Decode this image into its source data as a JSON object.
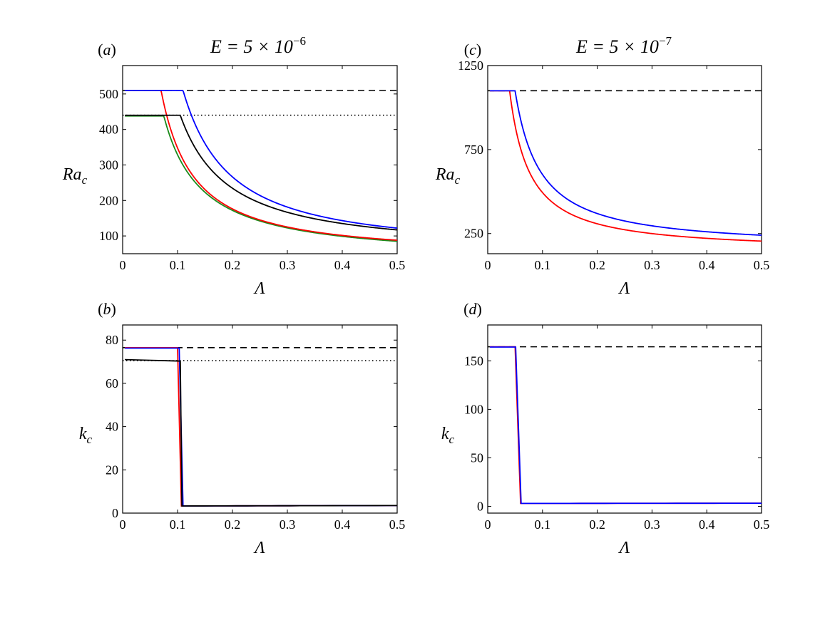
{
  "titles": {
    "left": {
      "base": "E = 5 × 10",
      "exp": "−6"
    },
    "right": {
      "base": "E = 5 × 10",
      "exp": "−7"
    }
  },
  "chart_data": [
    {
      "id": "a",
      "tag": "(a)",
      "type": "line",
      "xlabel": "Λ",
      "ylabel": {
        "main": "Ra",
        "sub": "c"
      },
      "xlim": [
        0,
        0.5
      ],
      "ylim": [
        50,
        580
      ],
      "xticks": [
        0,
        0.1,
        0.2,
        0.3,
        0.4,
        0.5
      ],
      "xtick_labels": [
        "0",
        "0.1",
        "0.2",
        "0.3",
        "0.4",
        "0.5"
      ],
      "yticks": [
        100,
        200,
        300,
        400,
        500
      ],
      "ytick_labels": [
        "100",
        "200",
        "300",
        "400",
        "500"
      ],
      "hlines": [
        {
          "name": "dashed",
          "y": 510,
          "style": "dashed",
          "color": "#000000"
        },
        {
          "name": "dotted",
          "y": 440,
          "style": "dotted",
          "color": "#000000"
        }
      ],
      "series": [
        {
          "name": "green",
          "color": "#1a8a1a",
          "plateau": 438,
          "x0": 0.075,
          "end": 85,
          "decay": "power",
          "p": 1.1
        },
        {
          "name": "red",
          "color": "#ff0000",
          "plateau": 510,
          "x0": 0.07,
          "end": 88,
          "decay": "power",
          "p": 1.2
        },
        {
          "name": "black",
          "color": "#000000",
          "plateau": 440,
          "x0": 0.105,
          "end": 117,
          "decay": "power",
          "p": 1.2
        },
        {
          "name": "blue",
          "color": "#0000ff",
          "plateau": 510,
          "x0": 0.11,
          "end": 122,
          "decay": "power",
          "p": 1.3
        }
      ]
    },
    {
      "id": "b",
      "tag": "(b)",
      "type": "line",
      "xlabel": "Λ",
      "ylabel": {
        "main": "k",
        "sub": "c"
      },
      "xlim": [
        0,
        0.5
      ],
      "ylim": [
        0,
        87
      ],
      "xticks": [
        0,
        0.1,
        0.2,
        0.3,
        0.4,
        0.5
      ],
      "xtick_labels": [
        "0",
        "0.1",
        "0.2",
        "0.3",
        "0.4",
        "0.5"
      ],
      "yticks": [
        0,
        20,
        40,
        60,
        80
      ],
      "ytick_labels": [
        "0",
        "20",
        "40",
        "60",
        "80"
      ],
      "hlines": [
        {
          "name": "dashed",
          "y": 76.5,
          "style": "dashed",
          "color": "#000000"
        },
        {
          "name": "dotted",
          "y": 70.5,
          "style": "dotted",
          "color": "#000000"
        }
      ],
      "series": [
        {
          "name": "red",
          "color": "#ff0000",
          "plateau": 76.5,
          "x0": 0.1,
          "x1": 0.107,
          "low": 3.3,
          "end": 3.5,
          "decay": "step"
        },
        {
          "name": "blue",
          "color": "#0000ff",
          "plateau": 76.3,
          "x0": 0.103,
          "x1": 0.11,
          "low": 3.3,
          "end": 3.5,
          "decay": "step"
        },
        {
          "name": "black",
          "color": "#000000",
          "plateau": 70.3,
          "x0": 0.105,
          "x1": 0.108,
          "low": 3.3,
          "end": 3.5,
          "decay": "step",
          "tilt": 0.7
        }
      ]
    },
    {
      "id": "c",
      "tag": "(c)",
      "type": "line",
      "xlabel": "Λ",
      "ylabel": {
        "main": "Ra",
        "sub": "c"
      },
      "xlim": [
        0,
        0.5
      ],
      "ylim": [
        130,
        1250
      ],
      "xticks": [
        0,
        0.1,
        0.2,
        0.3,
        0.4,
        0.5
      ],
      "xtick_labels": [
        "0",
        "0.1",
        "0.2",
        "0.3",
        "0.4",
        "0.5"
      ],
      "yticks": [
        250,
        750,
        1250
      ],
      "ytick_labels": [
        "250",
        "750",
        "1250"
      ],
      "hlines": [
        {
          "name": "dashed",
          "y": 1100,
          "style": "dashed",
          "color": "#000000"
        }
      ],
      "series": [
        {
          "name": "red",
          "color": "#ff0000",
          "plateau": 1100,
          "x0": 0.04,
          "end": 205,
          "decay": "power",
          "p": 1.1
        },
        {
          "name": "blue",
          "color": "#0000ff",
          "plateau": 1100,
          "x0": 0.05,
          "end": 240,
          "decay": "power",
          "p": 1.1
        }
      ]
    },
    {
      "id": "d",
      "tag": "(d)",
      "type": "line",
      "xlabel": "Λ",
      "ylabel": {
        "main": "k",
        "sub": "c"
      },
      "xlim": [
        0,
        0.5
      ],
      "ylim": [
        -7,
        187
      ],
      "xticks": [
        0,
        0.1,
        0.2,
        0.3,
        0.4,
        0.5
      ],
      "xtick_labels": [
        "0",
        "0.1",
        "0.2",
        "0.3",
        "0.4",
        "0.5"
      ],
      "yticks": [
        0,
        50,
        100,
        150
      ],
      "ytick_labels": [
        "0",
        "50",
        "100",
        "150"
      ],
      "hlines": [
        {
          "name": "dashed",
          "y": 164.5,
          "style": "dashed",
          "color": "#000000"
        }
      ],
      "series": [
        {
          "name": "red",
          "color": "#ff0000",
          "plateau": 164.5,
          "x0": 0.05,
          "x1": 0.06,
          "low": 3,
          "end": 3.2,
          "decay": "step"
        },
        {
          "name": "blue",
          "color": "#0000ff",
          "plateau": 164.2,
          "x0": 0.051,
          "x1": 0.061,
          "low": 3,
          "end": 3.2,
          "decay": "step"
        }
      ]
    }
  ]
}
